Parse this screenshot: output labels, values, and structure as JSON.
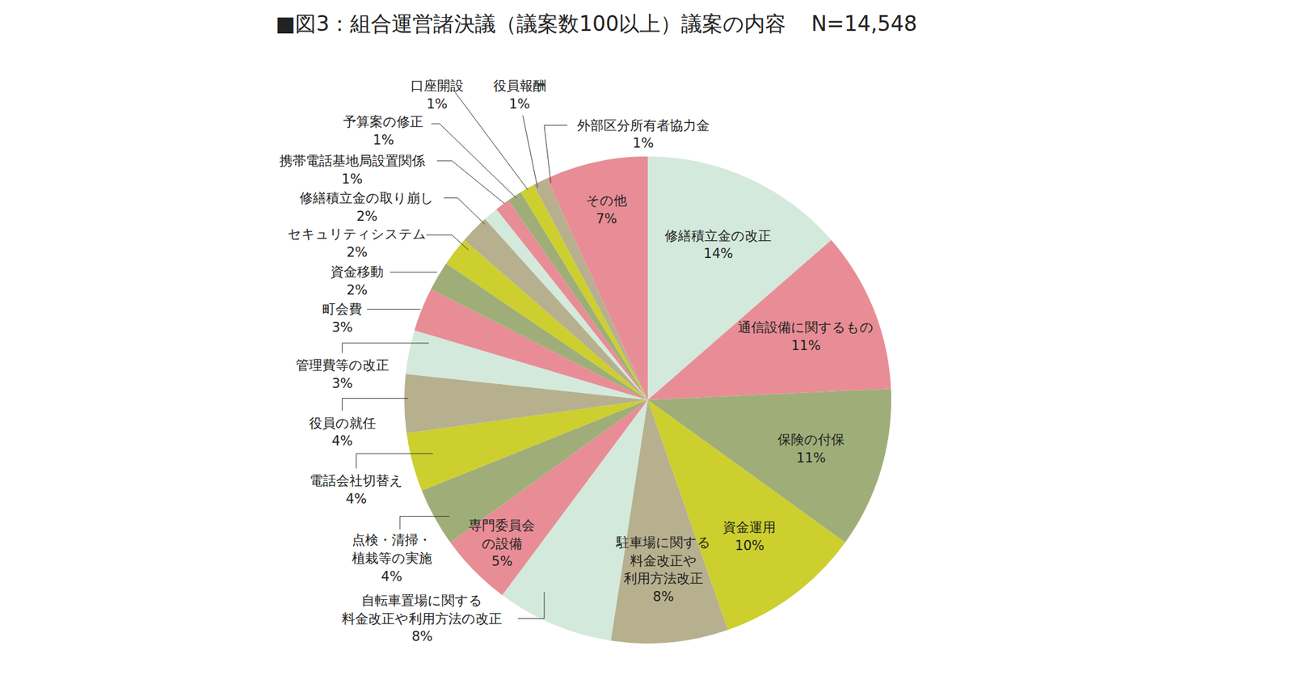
{
  "chart_data": {
    "type": "pie",
    "title": "■図3：組合運営諸決議（議案数100以上）議案の内容",
    "subtitle": "N=14,548",
    "categories": [
      "修繕積立金の改正",
      "通信設備に関するもの",
      "保険の付保",
      "資金運用",
      "駐車場に関する\n料金改正や\n利用方法改正",
      "自転車置場に関する\n料金改正や利用方法の改正",
      "専門委員会\nの設備",
      "点検・清掃・\n植栽等の実施",
      "電話会社切替え",
      "役員の就任",
      "管理費等の改正",
      "町会費",
      "資金移動",
      "セキュリティシステム",
      "修繕積立金の取り崩し",
      "携帯電話基地局設置関係",
      "予算案の修正",
      "口座開設",
      "役員報酬",
      "外部区分所有者協力金",
      "その他"
    ],
    "values": [
      14,
      11,
      11,
      10,
      8,
      8,
      5,
      4,
      4,
      4,
      3,
      3,
      2,
      2,
      2,
      1,
      1,
      1,
      1,
      1,
      7
    ],
    "value_labels": [
      "14%",
      "11%",
      "11%",
      "10%",
      "8%",
      "8%",
      "5%",
      "4%",
      "4%",
      "4%",
      "3%",
      "3%",
      "2%",
      "2%",
      "2%",
      "1%",
      "1%",
      "1%",
      "1%",
      "1%",
      "7%"
    ],
    "colors": [
      "#d3e9dc",
      "#e88d96",
      "#9fae78",
      "#cccf2e",
      "#b7b08e",
      "#d3e9dc",
      "#e88d96",
      "#9fae78",
      "#cccf2e",
      "#b7b08e",
      "#d3e9dc",
      "#e88d96",
      "#9fae78",
      "#cccf2e",
      "#b7b08e",
      "#d3e9dc",
      "#e88d96",
      "#9fae78",
      "#cccf2e",
      "#b7b08e",
      "#e88d96"
    ],
    "data_labels": true
  }
}
